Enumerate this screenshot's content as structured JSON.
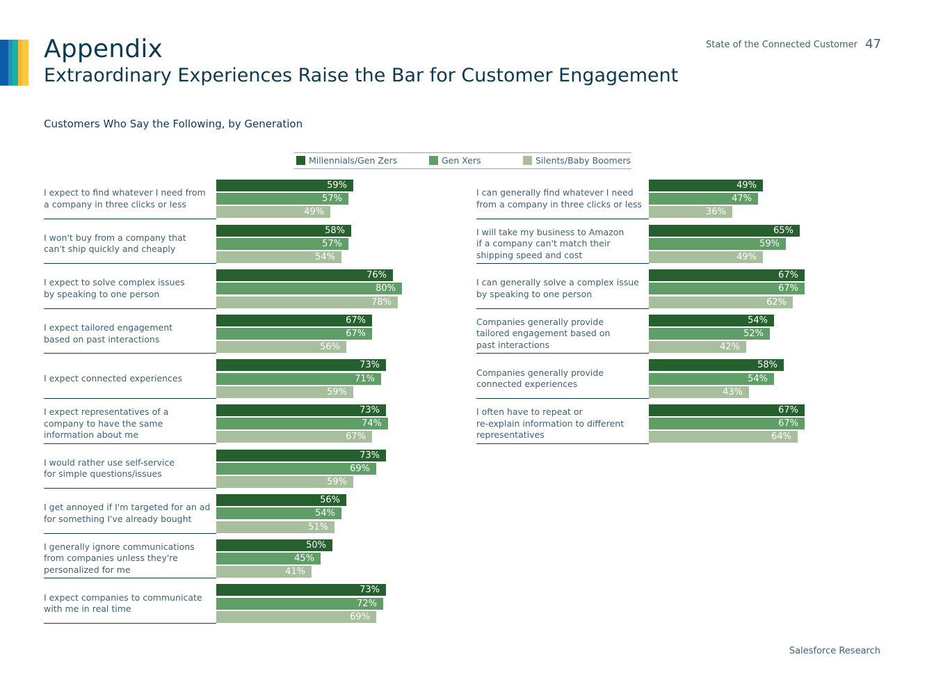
{
  "header": {
    "title": "Appendix",
    "subtitle": "Extraordinary Experiences Raise the Bar for Customer Engagement",
    "report_name": "State of the Connected Customer",
    "page_number": "47"
  },
  "footer": {
    "source": "Salesforce Research"
  },
  "colors": {
    "millennials": "#27602f",
    "genx": "#5f9e66",
    "silents": "#a8bf9e",
    "brand_strip": [
      "#0b5cab",
      "#2a8fb8",
      "#16b3a8",
      "#f4b63e",
      "#fbc93d"
    ]
  },
  "chart_data": {
    "type": "bar",
    "orientation": "horizontal",
    "title": "Customers Who Say the Following, by Generation",
    "legend": [
      "Millennials/Gen Zers",
      "Gen Xers",
      "Silents/Baby Boomers"
    ],
    "value_suffix": "%",
    "panels": [
      {
        "name": "expectations",
        "rows": [
          {
            "label": "I expect to find whatever I need from\na company in three clicks or less",
            "values": [
              59,
              57,
              49
            ]
          },
          {
            "label": "I won't buy from a company that\ncan't ship quickly and cheaply",
            "values": [
              58,
              57,
              54
            ]
          },
          {
            "label": "I expect to solve complex issues\nby speaking to one person",
            "values": [
              76,
              80,
              78
            ]
          },
          {
            "label": "I expect tailored engagement\nbased on past interactions",
            "values": [
              67,
              67,
              56
            ]
          },
          {
            "label": "I expect connected experiences",
            "values": [
              73,
              71,
              59
            ]
          },
          {
            "label": "I expect representatives of a\ncompany to have the same\ninformation about me",
            "values": [
              73,
              74,
              67
            ]
          },
          {
            "label": "I would rather use self-service\nfor simple questions/issues",
            "values": [
              73,
              69,
              59
            ]
          },
          {
            "label": "I get annoyed if I'm targeted for an ad\nfor something I've already bought",
            "values": [
              56,
              54,
              51
            ]
          },
          {
            "label": "I generally ignore communications\nfrom companies unless they're\npersonalized for me",
            "values": [
              50,
              45,
              41
            ]
          },
          {
            "label": "I expect companies to communicate\nwith me in real time",
            "values": [
              73,
              72,
              69
            ]
          }
        ]
      },
      {
        "name": "experiences",
        "rows": [
          {
            "label": "I can generally find whatever I need\nfrom a company in three clicks or less",
            "values": [
              49,
              47,
              36
            ]
          },
          {
            "label": "I will take my business to Amazon\nif a company can't match their\nshipping speed and cost",
            "values": [
              65,
              59,
              49
            ]
          },
          {
            "label": "I can generally solve a complex issue\nby speaking to one person",
            "values": [
              67,
              67,
              62
            ]
          },
          {
            "label": "Companies generally provide\ntailored engagement based on\npast interactions",
            "values": [
              54,
              52,
              42
            ]
          },
          {
            "label": "Companies generally provide\nconnected experiences",
            "values": [
              58,
              54,
              43
            ]
          },
          {
            "label": "I often have to repeat or\nre-explain information to different\nrepresentatives",
            "values": [
              67,
              67,
              64
            ]
          }
        ]
      }
    ]
  }
}
